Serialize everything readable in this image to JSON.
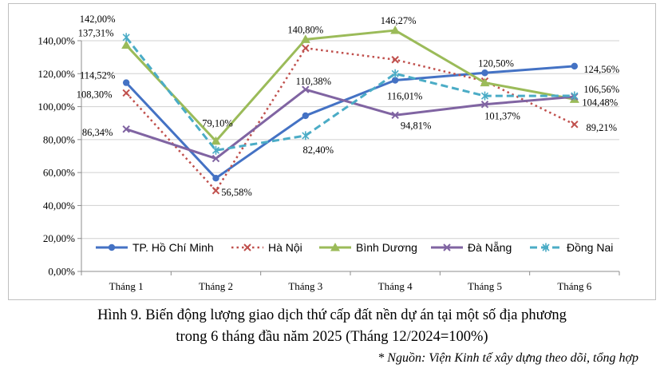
{
  "chart_data": {
    "type": "line",
    "categories": [
      "Tháng 1",
      "Tháng 2",
      "Tháng 3",
      "Tháng 4",
      "Tháng 5",
      "Tháng 6"
    ],
    "ylim": [
      0,
      140
    ],
    "yticks": [
      "0,00%",
      "20,00%",
      "40,00%",
      "60,00%",
      "80,00%",
      "100,00%",
      "120,00%",
      "140,00%"
    ],
    "grid": true,
    "legend_position": "bottom-inside",
    "series": [
      {
        "name": "TP. Hồ Chí Minh",
        "color": "#4472C4",
        "marker": "circle",
        "dash": "solid",
        "values": [
          114.52,
          56.58,
          94.5,
          116.01,
          120.5,
          124.56
        ],
        "labels": [
          "114,52%",
          "56,58%",
          "",
          "116,01%",
          "120,50%",
          "124,56%"
        ]
      },
      {
        "name": "Hà Nội",
        "color": "#C0504D",
        "marker": "x",
        "dash": "dotted",
        "values": [
          108.3,
          49,
          135.5,
          128.5,
          115.5,
          89.21
        ],
        "labels": [
          "108,30%",
          "",
          "",
          "",
          "",
          "89,21%"
        ]
      },
      {
        "name": "Bình Dương",
        "color": "#9BBB59",
        "marker": "triangle",
        "dash": "solid",
        "values": [
          137.31,
          79.1,
          140.8,
          146.27,
          114.5,
          104.48
        ],
        "labels": [
          "137,31%",
          "79,10%",
          "140,80%",
          "146,27%",
          "",
          "104,48%"
        ]
      },
      {
        "name": "Đà Nẵng",
        "color": "#8064A2",
        "marker": "x",
        "dash": "solid",
        "values": [
          86.34,
          68.5,
          110.38,
          94.81,
          101.37,
          106
        ],
        "labels": [
          "86,34%",
          "",
          "110,38%",
          "94,81%",
          "101,37%",
          ""
        ]
      },
      {
        "name": "Đồng Nai",
        "color": "#4BACC6",
        "marker": "star",
        "dash": "dashed",
        "values": [
          142.0,
          73.5,
          82.4,
          120.0,
          106.5,
          106.56
        ],
        "labels": [
          "142,00%",
          "",
          "82,40%",
          "",
          "",
          "106,56%"
        ]
      }
    ]
  },
  "caption": {
    "line1": "Hình 9. Biến động lượng giao dịch thứ cấp đất nền dự án tại một số địa phương",
    "line2": "trong 6 tháng đầu năm 2025 (Tháng 12/2024=100%)"
  },
  "source": "* Nguồn: Viện Kinh tế xây dựng theo dõi, tổng hợp"
}
